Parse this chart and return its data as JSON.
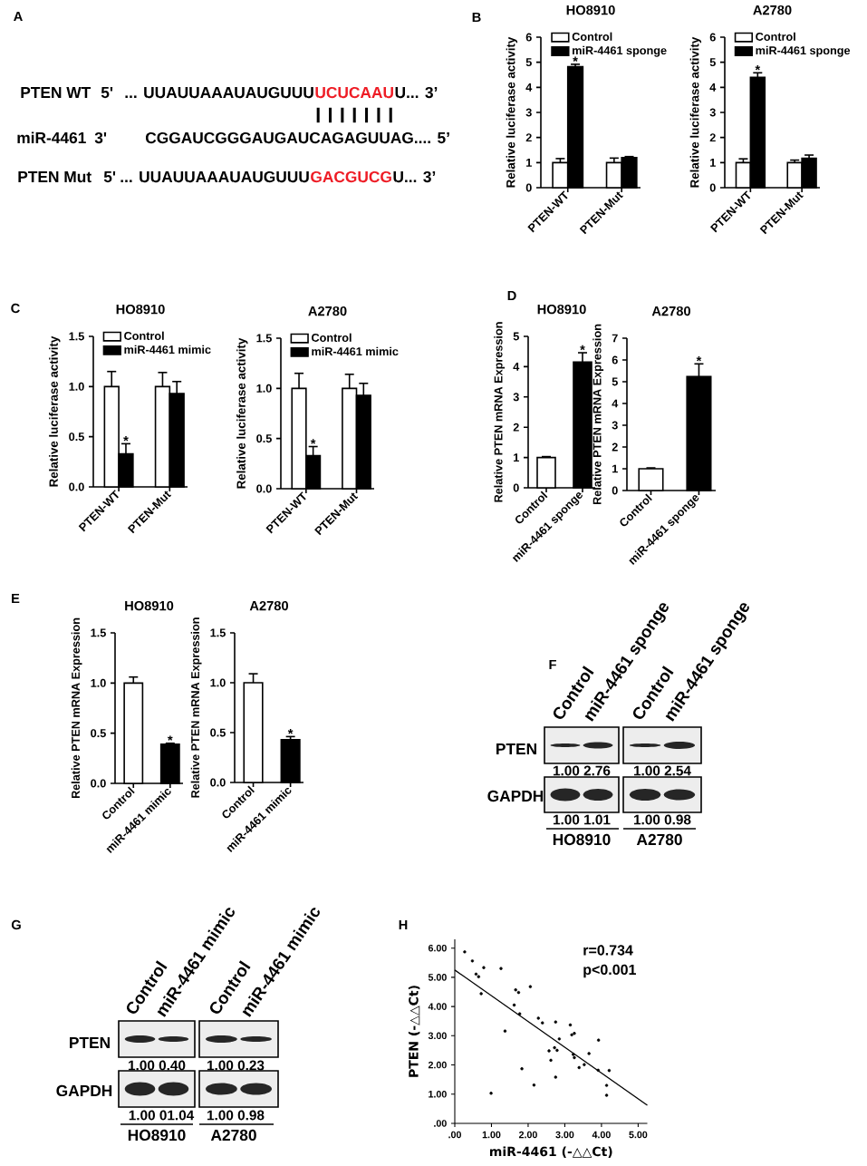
{
  "chart_data": [
    {
      "type": "other",
      "color": "#ee1c25",
      "annotations": [
        "A",
        "PTEN WT",
        "5'",
        "... UUAUUAAAUAUGUUU",
        "UCUCAAU",
        "U... 3’",
        "| | | | | | |",
        "miR-4461",
        "3'",
        "CGGAUCGGGAUGAUCAGAGUUAG.... 5’",
        "PTEN Mut",
        "5'",
        "... UUAUUAAAUAUGUUU",
        "GACGUCG",
        "U... 3’"
      ]
    },
    {
      "type": "bar",
      "title": "HO8910",
      "ylabel": "Relative luciferase activity",
      "categories": [
        "PTEN-WT",
        "PTEN-Mut"
      ],
      "series": [
        {
          "name": "Control",
          "color": "#ffffff",
          "values": [
            1.0,
            1.0
          ],
          "errors": [
            [
              1.0,
              1.16
            ],
            [
              1.0,
              1.18
            ]
          ]
        },
        {
          "name": "miR-4461 sponge",
          "color": "#000000",
          "values": [
            4.82,
            1.2
          ],
          "errors": [
            [
              4.82,
              4.92
            ],
            [
              1.2,
              1.24
            ]
          ]
        }
      ],
      "ylim": [
        0,
        6
      ],
      "yticks": [
        0,
        1,
        2,
        3,
        4,
        5,
        6
      ],
      "legend": "top",
      "annotations": [
        "B",
        {
          "text": "*",
          "x": "PTEN-WT",
          "y": 4.92
        }
      ]
    },
    {
      "type": "bar",
      "title": "A2780",
      "ylabel": "Relative luciferase activity",
      "categories": [
        "PTEN-WT",
        "PTEN-Mut"
      ],
      "series": [
        {
          "name": "Control",
          "color": "#ffffff",
          "values": [
            1.0,
            1.0
          ],
          "errors": [
            [
              1.0,
              1.15
            ],
            [
              1.0,
              1.1
            ]
          ]
        },
        {
          "name": "miR-4461 sponge",
          "color": "#000000",
          "values": [
            4.4,
            1.17
          ],
          "errors": [
            [
              4.4,
              4.58
            ],
            [
              1.17,
              1.3
            ]
          ]
        }
      ],
      "ylim": [
        0,
        6
      ],
      "yticks": [
        0,
        1,
        2,
        3,
        4,
        5,
        6
      ],
      "legend": "top",
      "annotations": [
        {
          "text": "*",
          "x": "PTEN-WT",
          "y": 4.58
        }
      ]
    },
    {
      "type": "bar",
      "title": "HO8910",
      "ylabel": "Relative luciferase activity",
      "categories": [
        "PTEN-WT",
        "PTEN-Mut"
      ],
      "series": [
        {
          "name": "Control",
          "color": "#ffffff",
          "values": [
            1.0,
            1.0
          ],
          "errors": [
            [
              1.0,
              1.15
            ],
            [
              1.0,
              1.14
            ]
          ]
        },
        {
          "name": "miR-4461 mimic",
          "color": "#000000",
          "values": [
            0.33,
            0.93
          ],
          "errors": [
            [
              0.33,
              0.43
            ],
            [
              0.93,
              1.05
            ]
          ]
        }
      ],
      "ylim": [
        0,
        1.5
      ],
      "yticks": [
        {
          "value": 0,
          "label": "0.0"
        },
        0.5,
        {
          "value": 1,
          "label": "1.0"
        },
        1.5
      ],
      "legend": "top",
      "annotations": [
        "C",
        {
          "text": "*",
          "x": "PTEN-WT",
          "y": 0.43
        }
      ]
    },
    {
      "type": "bar",
      "title": "A2780",
      "ylabel": "Relative luciferase activity",
      "categories": [
        "PTEN-WT",
        "PTEN-Mut"
      ],
      "series": [
        {
          "name": "Control",
          "color": "#ffffff",
          "values": [
            1.0,
            1.0
          ],
          "errors": [
            [
              1.0,
              1.15
            ],
            [
              1.0,
              1.14
            ]
          ]
        },
        {
          "name": "miR-4461 mimic",
          "color": "#000000",
          "values": [
            0.33,
            0.93
          ],
          "errors": [
            [
              0.33,
              0.42
            ],
            [
              0.93,
              1.05
            ]
          ]
        }
      ],
      "ylim": [
        0,
        1.5
      ],
      "yticks": [
        {
          "value": 0,
          "label": "0.0"
        },
        0.5,
        {
          "value": 1,
          "label": "1.0"
        },
        1.5
      ],
      "legend": "top",
      "annotations": [
        {
          "text": "*",
          "x": "PTEN-WT",
          "y": 0.42
        }
      ]
    },
    {
      "type": "bar",
      "title": "HO8910",
      "ylabel": "Relative PTEN mRNA Expression",
      "categories": [
        "Control",
        "miR-4461 sponge"
      ],
      "values": [
        1.0,
        4.15
      ],
      "colors": [
        "#ffffff",
        "#000000"
      ],
      "errors": [
        [
          1.0,
          1.03
        ],
        [
          4.15,
          4.46
        ]
      ],
      "ylim": [
        0,
        5
      ],
      "yticks": [
        0,
        1,
        2,
        3,
        4,
        5
      ],
      "annotations": [
        "D",
        {
          "text": "*",
          "x": "miR-4461 sponge",
          "y": 4.46
        }
      ]
    },
    {
      "type": "bar",
      "title": "A2780",
      "ylabel": "Relative PTEN mRNA Expression",
      "categories": [
        "Control",
        "miR-4461 sponge"
      ],
      "values": [
        1.0,
        5.24
      ],
      "colors": [
        "#ffffff",
        "#000000"
      ],
      "errors": [
        [
          1.0,
          1.04
        ],
        [
          5.24,
          5.82
        ]
      ],
      "ylim": [
        0,
        7
      ],
      "yticks": [
        0,
        1,
        2,
        3,
        4,
        5,
        6,
        7
      ],
      "annotations": [
        {
          "text": "*",
          "x": "miR-4461 sponge",
          "y": 5.82
        }
      ]
    },
    {
      "type": "bar",
      "title": "HO8910",
      "ylabel": "Relative PTEN mRNA Expression",
      "categories": [
        "Control",
        "miR-4461 mimic"
      ],
      "values": [
        1.0,
        0.39
      ],
      "colors": [
        "#ffffff",
        "#000000"
      ],
      "errors": [
        [
          1.0,
          1.06
        ],
        [
          0.39,
          0.4
        ]
      ],
      "ylim": [
        0,
        1.5
      ],
      "yticks": [
        {
          "value": 0,
          "label": "0.0"
        },
        0.5,
        {
          "value": 1,
          "label": "1.0"
        },
        1.5
      ],
      "annotations": [
        "E",
        {
          "text": "*",
          "x": "miR-4461 mimic",
          "y": 0.4
        }
      ]
    },
    {
      "type": "bar",
      "title": "A2780",
      "ylabel": "Relative PTEN mRNA Expression",
      "categories": [
        "Control",
        "miR-4461 mimic"
      ],
      "values": [
        1.0,
        0.43
      ],
      "colors": [
        "#ffffff",
        "#000000"
      ],
      "errors": [
        [
          1.0,
          1.09
        ],
        [
          0.43,
          0.46
        ]
      ],
      "ylim": [
        0,
        1.5
      ],
      "yticks": [
        {
          "value": 0,
          "label": "0.0"
        },
        0.5,
        {
          "value": 1,
          "label": "1.0"
        },
        1.5
      ],
      "annotations": [
        {
          "text": "*",
          "x": "miR-4461 mimic",
          "y": 0.46
        }
      ]
    },
    {
      "type": "other",
      "annotations": [
        "F",
        "Control",
        "miR-4461 sponge",
        "Control",
        "miR-4461 sponge",
        "PTEN",
        "GAPDH",
        "1.00 2.76",
        "1.00 2.54",
        "1.00 1.01",
        "1.00 0.98",
        "HO8910",
        "A2780"
      ]
    },
    {
      "type": "other",
      "annotations": [
        "G",
        "Control",
        "miR-4461 mimic",
        "Control",
        "miR-4461 mimic",
        "PTEN",
        "GAPDH",
        "1.00 0.40",
        "1.00 0.23",
        "1.00 01.04",
        "1.00 0.98",
        "HO8910",
        "A2780"
      ]
    },
    {
      "type": "scatter",
      "xlabel": "miR-4461 (-△△Ct)",
      "ylabel": "PTEN (-△△Ct)",
      "xlim": [
        0,
        5.25
      ],
      "ylim": [
        0,
        6.3
      ],
      "xticks": [
        {
          "value": 0,
          "label": ".00"
        },
        {
          "value": 1,
          "label": "1.00"
        },
        {
          "value": 2,
          "label": "2.00"
        },
        {
          "value": 3,
          "label": "3.00"
        },
        {
          "value": 4,
          "label": "4.00"
        },
        {
          "value": 5,
          "label": "5.00"
        }
      ],
      "yticks": [
        {
          "value": 0,
          "label": ".00"
        },
        {
          "value": 1,
          "label": "1.00"
        },
        {
          "value": 2,
          "label": "2.00"
        },
        {
          "value": 3,
          "label": "3.00"
        },
        {
          "value": 4,
          "label": "4.00"
        },
        {
          "value": 5,
          "label": "5.00"
        },
        {
          "value": 6,
          "label": "6.00"
        }
      ],
      "marker": "circle",
      "series": [
        {
          "type": "scatter",
          "color": "#000000",
          "x": [
            0.27,
            0.48,
            0.58,
            0.65,
            0.79,
            0.72,
            1.26,
            0.99,
            1.37,
            1.62,
            1.66,
            1.74,
            1.77,
            1.83,
            2.06,
            2.16,
            2.28,
            2.39,
            2.57,
            2.62,
            2.72,
            2.75,
            2.79,
            2.75,
            2.85,
            3.15,
            3.19,
            3.26,
            3.23,
            3.26,
            3.39,
            3.53,
            3.66,
            3.92,
            3.91,
            4.21,
            4.14,
            4.14
          ],
          "values": [
            5.87,
            5.56,
            5.11,
            5.02,
            5.33,
            4.44,
            5.3,
            1.03,
            3.16,
            4.05,
            4.57,
            4.48,
            3.75,
            1.87,
            4.68,
            1.31,
            3.6,
            3.44,
            2.48,
            2.16,
            2.59,
            3.47,
            2.5,
            1.58,
            2.89,
            3.37,
            3.03,
            3.08,
            2.36,
            2.25,
            1.91,
            2.01,
            2.39,
            2.85,
            1.82,
            1.81,
            1.3,
            0.96
          ]
        },
        {
          "type": "line",
          "color": "#000000",
          "marker": "none",
          "x": [
            0,
            5.25
          ],
          "values": [
            5.25,
            0.62
          ]
        }
      ],
      "annotations": [
        "H",
        "r=0.734",
        "p<0.001"
      ]
    }
  ]
}
